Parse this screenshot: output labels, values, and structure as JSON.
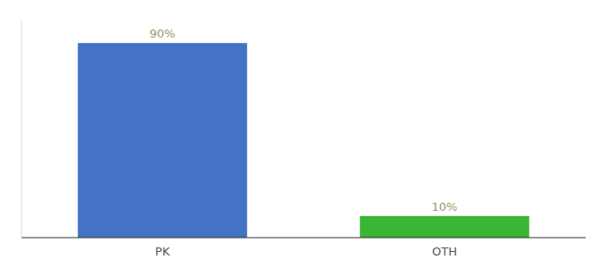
{
  "chart_data": {
    "type": "bar",
    "categories": [
      "PK",
      "OTH"
    ],
    "values": [
      90,
      10
    ],
    "value_labels": [
      "90%",
      "10%"
    ],
    "colors": [
      "#4472c4",
      "#3ab534"
    ],
    "ylim": [
      0,
      100
    ],
    "data_labels": true,
    "tick_labels": "x"
  }
}
